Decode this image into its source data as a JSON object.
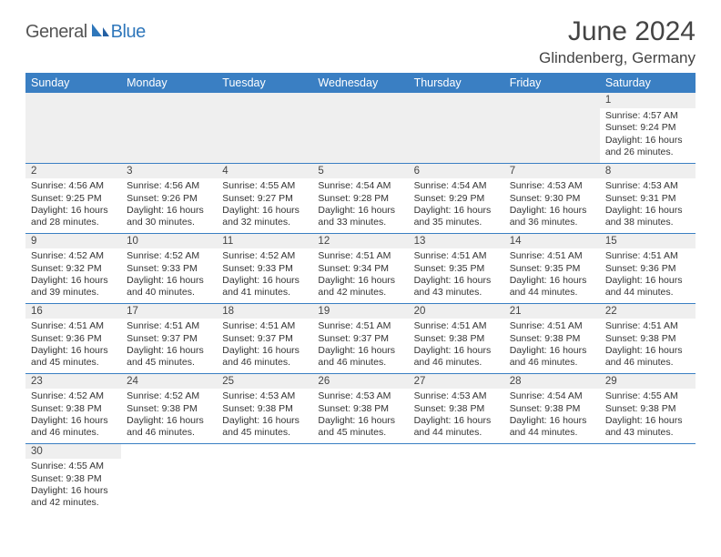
{
  "brand": {
    "part1": "General",
    "part2": "Blue"
  },
  "title": "June 2024",
  "location": "Glindenberg, Germany",
  "header_bg": "#3a7fc3",
  "header_fg": "#ffffff",
  "daynum_bg": "#efefef",
  "border_color": "#3a7fc3",
  "font_family": "Arial",
  "daynames": [
    "Sunday",
    "Monday",
    "Tuesday",
    "Wednesday",
    "Thursday",
    "Friday",
    "Saturday"
  ],
  "first_weekday_index": 6,
  "weeks": [
    [
      null,
      null,
      null,
      null,
      null,
      null,
      {
        "n": "1",
        "sunrise": "Sunrise: 4:57 AM",
        "sunset": "Sunset: 9:24 PM",
        "daylight": "Daylight: 16 hours and 26 minutes."
      }
    ],
    [
      {
        "n": "2",
        "sunrise": "Sunrise: 4:56 AM",
        "sunset": "Sunset: 9:25 PM",
        "daylight": "Daylight: 16 hours and 28 minutes."
      },
      {
        "n": "3",
        "sunrise": "Sunrise: 4:56 AM",
        "sunset": "Sunset: 9:26 PM",
        "daylight": "Daylight: 16 hours and 30 minutes."
      },
      {
        "n": "4",
        "sunrise": "Sunrise: 4:55 AM",
        "sunset": "Sunset: 9:27 PM",
        "daylight": "Daylight: 16 hours and 32 minutes."
      },
      {
        "n": "5",
        "sunrise": "Sunrise: 4:54 AM",
        "sunset": "Sunset: 9:28 PM",
        "daylight": "Daylight: 16 hours and 33 minutes."
      },
      {
        "n": "6",
        "sunrise": "Sunrise: 4:54 AM",
        "sunset": "Sunset: 9:29 PM",
        "daylight": "Daylight: 16 hours and 35 minutes."
      },
      {
        "n": "7",
        "sunrise": "Sunrise: 4:53 AM",
        "sunset": "Sunset: 9:30 PM",
        "daylight": "Daylight: 16 hours and 36 minutes."
      },
      {
        "n": "8",
        "sunrise": "Sunrise: 4:53 AM",
        "sunset": "Sunset: 9:31 PM",
        "daylight": "Daylight: 16 hours and 38 minutes."
      }
    ],
    [
      {
        "n": "9",
        "sunrise": "Sunrise: 4:52 AM",
        "sunset": "Sunset: 9:32 PM",
        "daylight": "Daylight: 16 hours and 39 minutes."
      },
      {
        "n": "10",
        "sunrise": "Sunrise: 4:52 AM",
        "sunset": "Sunset: 9:33 PM",
        "daylight": "Daylight: 16 hours and 40 minutes."
      },
      {
        "n": "11",
        "sunrise": "Sunrise: 4:52 AM",
        "sunset": "Sunset: 9:33 PM",
        "daylight": "Daylight: 16 hours and 41 minutes."
      },
      {
        "n": "12",
        "sunrise": "Sunrise: 4:51 AM",
        "sunset": "Sunset: 9:34 PM",
        "daylight": "Daylight: 16 hours and 42 minutes."
      },
      {
        "n": "13",
        "sunrise": "Sunrise: 4:51 AM",
        "sunset": "Sunset: 9:35 PM",
        "daylight": "Daylight: 16 hours and 43 minutes."
      },
      {
        "n": "14",
        "sunrise": "Sunrise: 4:51 AM",
        "sunset": "Sunset: 9:35 PM",
        "daylight": "Daylight: 16 hours and 44 minutes."
      },
      {
        "n": "15",
        "sunrise": "Sunrise: 4:51 AM",
        "sunset": "Sunset: 9:36 PM",
        "daylight": "Daylight: 16 hours and 44 minutes."
      }
    ],
    [
      {
        "n": "16",
        "sunrise": "Sunrise: 4:51 AM",
        "sunset": "Sunset: 9:36 PM",
        "daylight": "Daylight: 16 hours and 45 minutes."
      },
      {
        "n": "17",
        "sunrise": "Sunrise: 4:51 AM",
        "sunset": "Sunset: 9:37 PM",
        "daylight": "Daylight: 16 hours and 45 minutes."
      },
      {
        "n": "18",
        "sunrise": "Sunrise: 4:51 AM",
        "sunset": "Sunset: 9:37 PM",
        "daylight": "Daylight: 16 hours and 46 minutes."
      },
      {
        "n": "19",
        "sunrise": "Sunrise: 4:51 AM",
        "sunset": "Sunset: 9:37 PM",
        "daylight": "Daylight: 16 hours and 46 minutes."
      },
      {
        "n": "20",
        "sunrise": "Sunrise: 4:51 AM",
        "sunset": "Sunset: 9:38 PM",
        "daylight": "Daylight: 16 hours and 46 minutes."
      },
      {
        "n": "21",
        "sunrise": "Sunrise: 4:51 AM",
        "sunset": "Sunset: 9:38 PM",
        "daylight": "Daylight: 16 hours and 46 minutes."
      },
      {
        "n": "22",
        "sunrise": "Sunrise: 4:51 AM",
        "sunset": "Sunset: 9:38 PM",
        "daylight": "Daylight: 16 hours and 46 minutes."
      }
    ],
    [
      {
        "n": "23",
        "sunrise": "Sunrise: 4:52 AM",
        "sunset": "Sunset: 9:38 PM",
        "daylight": "Daylight: 16 hours and 46 minutes."
      },
      {
        "n": "24",
        "sunrise": "Sunrise: 4:52 AM",
        "sunset": "Sunset: 9:38 PM",
        "daylight": "Daylight: 16 hours and 46 minutes."
      },
      {
        "n": "25",
        "sunrise": "Sunrise: 4:53 AM",
        "sunset": "Sunset: 9:38 PM",
        "daylight": "Daylight: 16 hours and 45 minutes."
      },
      {
        "n": "26",
        "sunrise": "Sunrise: 4:53 AM",
        "sunset": "Sunset: 9:38 PM",
        "daylight": "Daylight: 16 hours and 45 minutes."
      },
      {
        "n": "27",
        "sunrise": "Sunrise: 4:53 AM",
        "sunset": "Sunset: 9:38 PM",
        "daylight": "Daylight: 16 hours and 44 minutes."
      },
      {
        "n": "28",
        "sunrise": "Sunrise: 4:54 AM",
        "sunset": "Sunset: 9:38 PM",
        "daylight": "Daylight: 16 hours and 44 minutes."
      },
      {
        "n": "29",
        "sunrise": "Sunrise: 4:55 AM",
        "sunset": "Sunset: 9:38 PM",
        "daylight": "Daylight: 16 hours and 43 minutes."
      }
    ],
    [
      {
        "n": "30",
        "sunrise": "Sunrise: 4:55 AM",
        "sunset": "Sunset: 9:38 PM",
        "daylight": "Daylight: 16 hours and 42 minutes."
      },
      null,
      null,
      null,
      null,
      null,
      null
    ]
  ]
}
